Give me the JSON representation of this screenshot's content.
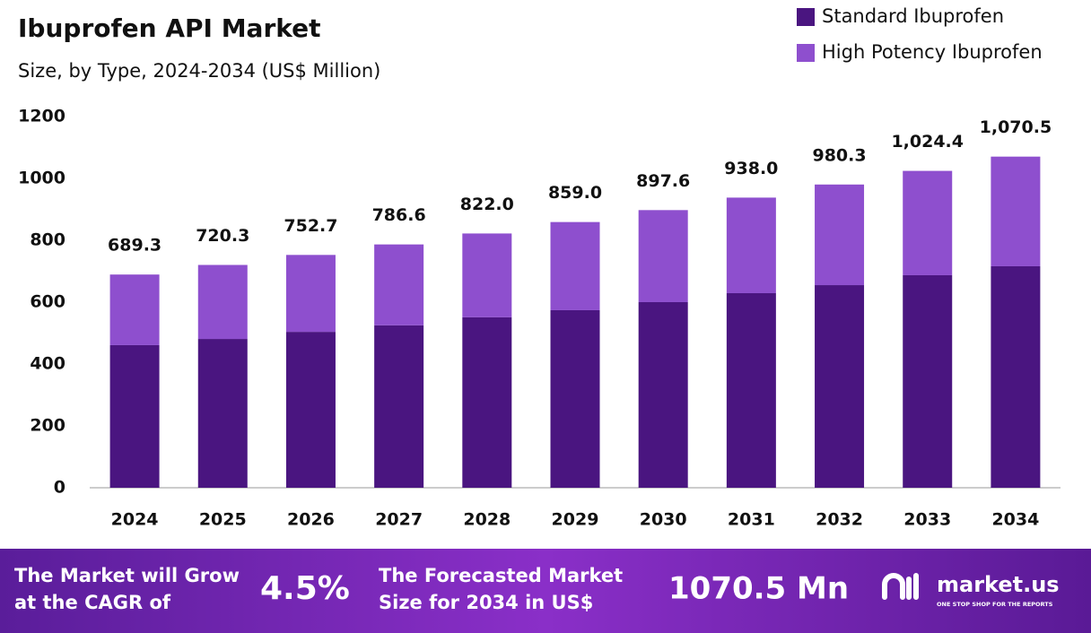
{
  "chart_data": {
    "type": "stacked-bar",
    "title": "Ibuprofen API Market",
    "subtitle": "Size, by Type, 2024-2034 (US$ Million)",
    "categories": [
      "2024",
      "2025",
      "2026",
      "2027",
      "2028",
      "2029",
      "2030",
      "2031",
      "2032",
      "2033",
      "2034"
    ],
    "series": [
      {
        "name": "Standard Ibuprofen",
        "color": "#4a1580",
        "values": [
          461,
          481,
          504,
          525,
          551,
          574,
          600,
          629,
          655,
          687,
          716
        ]
      },
      {
        "name": "High Potency Ibuprofen",
        "color": "#8e4fce",
        "values": [
          228.3,
          239.3,
          248.7,
          261.6,
          271,
          285,
          297.6,
          309,
          325.3,
          337.4,
          354.5
        ]
      }
    ],
    "totals": [
      689.3,
      720.3,
      752.7,
      786.6,
      822,
      859,
      897.6,
      938,
      980.3,
      1024.4,
      1070.5
    ],
    "total_labels": [
      "689.3",
      "720.3",
      "752.7",
      "786.6",
      "822.0",
      "859.0",
      "897.6",
      "938.0",
      "980.3",
      "1,024.4",
      "1,070.5"
    ],
    "ylim": [
      0,
      1200
    ],
    "yticks": [
      0,
      200,
      400,
      600,
      800,
      1000,
      1200
    ],
    "grid": false,
    "legend": "top-right"
  },
  "footer": {
    "cagr_text": [
      "The Market will Grow",
      "at the CAGR of"
    ],
    "cagr_value": "4.5%",
    "forecast_text": [
      "The Forecasted Market",
      "Size for 2034 in US$"
    ],
    "forecast_value": "1070.5 Mn",
    "brand": "market.us",
    "tagline": "ONE STOP SHOP FOR THE REPORTS"
  }
}
